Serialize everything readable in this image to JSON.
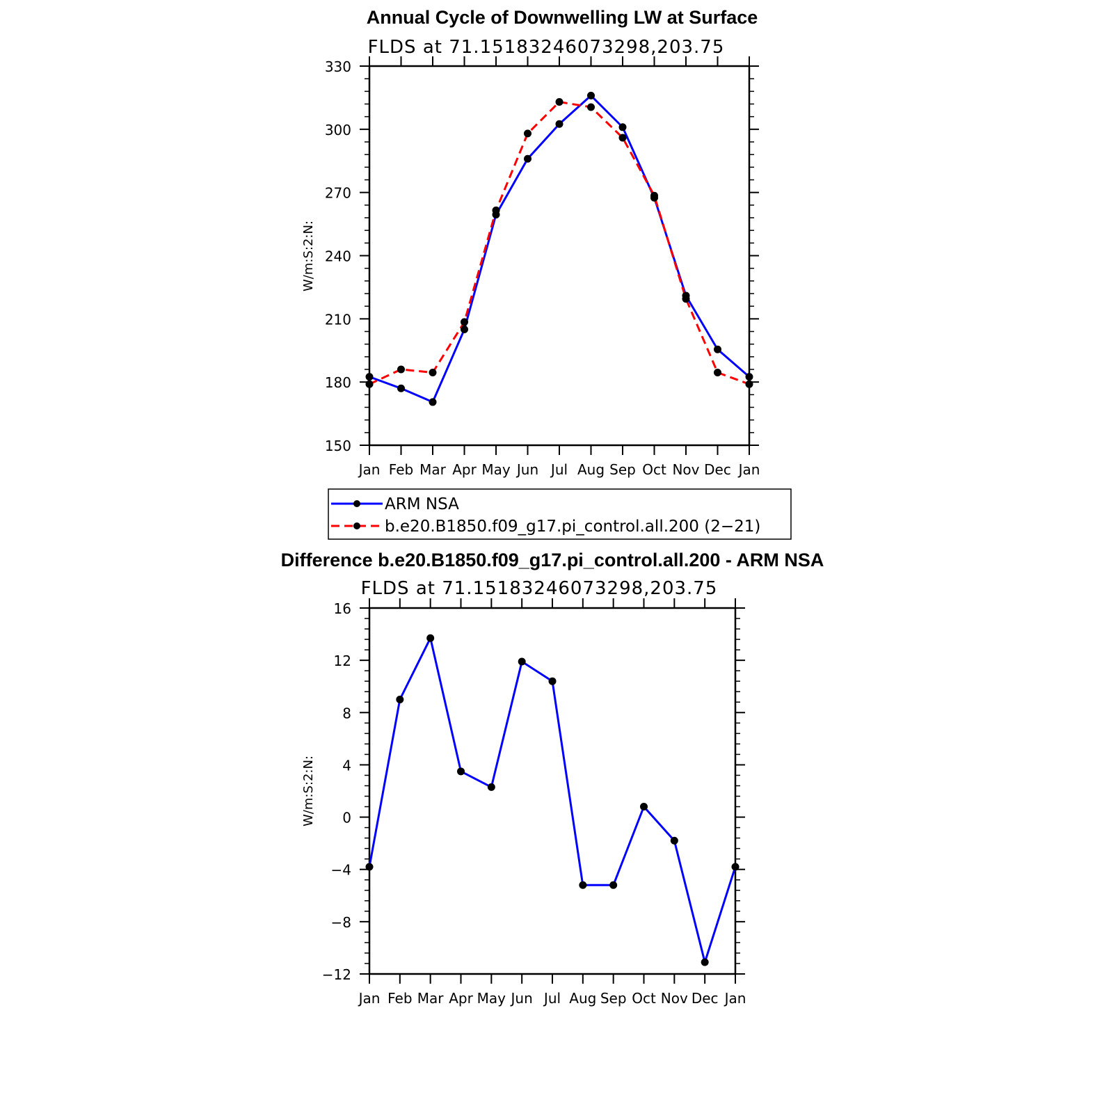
{
  "chart_data": [
    {
      "type": "line",
      "title": "Annual Cycle of Downwelling LW at Surface",
      "subtitle": "FLDS at 71.15183246073298,203.75",
      "ylabel": "W/m:S:2:N:",
      "xlabel": "",
      "categories": [
        "Jan",
        "Feb",
        "Mar",
        "Apr",
        "May",
        "Jun",
        "Jul",
        "Aug",
        "Sep",
        "Oct",
        "Nov",
        "Dec",
        "Jan"
      ],
      "ylim": [
        150,
        330
      ],
      "yticks": [
        150,
        180,
        210,
        240,
        270,
        300,
        330
      ],
      "yticks_label": [
        "150",
        "180",
        "210",
        "240",
        "270",
        "300",
        "330"
      ],
      "legend_position": "bottom",
      "grid": false,
      "series": [
        {
          "name": "ARM NSA",
          "color": "#0000ff",
          "dash": "solid",
          "values": [
            182.5,
            177,
            170.5,
            205,
            259.5,
            286,
            302.5,
            316,
            301,
            267.5,
            221,
            195.5,
            182.5
          ]
        },
        {
          "name": "b.e20.B1850.f09_g17.pi_control.all.200 (2−21)",
          "color": "#ff0000",
          "dash": "dashed",
          "values": [
            179,
            186,
            184.5,
            208.5,
            261.5,
            298,
            313,
            310.5,
            296,
            268.5,
            219.5,
            184.5,
            179
          ]
        }
      ]
    },
    {
      "type": "line",
      "title": "Difference b.e20.B1850.f09_g17.pi_control.all.200 - ARM NSA",
      "subtitle": "FLDS at 71.15183246073298,203.75",
      "ylabel": "W/m:S:2:N:",
      "xlabel": "",
      "categories": [
        "Jan",
        "Feb",
        "Mar",
        "Apr",
        "May",
        "Jun",
        "Jul",
        "Aug",
        "Sep",
        "Oct",
        "Nov",
        "Dec",
        "Jan"
      ],
      "ylim": [
        -12,
        16
      ],
      "yticks": [
        -12,
        -8,
        -4,
        0,
        4,
        8,
        12,
        16
      ],
      "yticks_label": [
        "−12",
        "−8",
        "−4",
        "0",
        "4",
        "8",
        "12",
        "16"
      ],
      "grid": false,
      "series": [
        {
          "color": "#0000ff",
          "dash": "solid",
          "values": [
            -3.8,
            9.0,
            13.7,
            3.5,
            2.3,
            11.9,
            10.4,
            -5.2,
            -5.2,
            0.8,
            -1.8,
            -11.1,
            -3.8
          ]
        }
      ]
    }
  ]
}
